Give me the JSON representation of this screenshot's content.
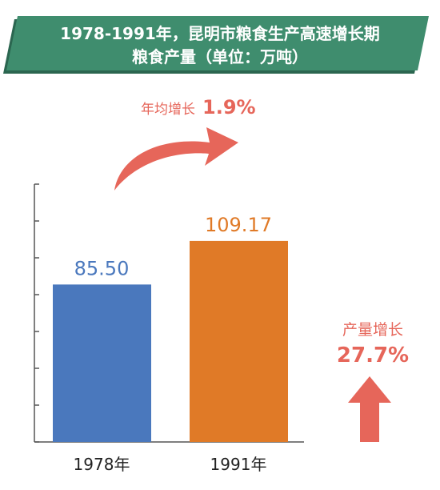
{
  "header": {
    "title_line1": "1978-1991年，昆明市粮食生产高速增长期",
    "title_line2": "粮食产量（单位：万吨）"
  },
  "colors": {
    "banner": "#3f8d6e",
    "banner_shadow": "#2b6650",
    "bar_1978": "#4a78bd",
    "bar_1991": "#e07a27",
    "accent_red": "#e6665a"
  },
  "annotations": {
    "annual_growth_label": "年均增长",
    "annual_growth_value": "1.9%",
    "total_growth_label": "产量增长",
    "total_growth_value": "27.7%"
  },
  "chart_data": {
    "type": "bar",
    "categories": [
      "1978年",
      "1991年"
    ],
    "values": [
      85.5,
      109.17
    ],
    "value_labels": [
      "85.50",
      "109.17"
    ],
    "ylim": [
      0,
      140
    ],
    "grid": false
  }
}
